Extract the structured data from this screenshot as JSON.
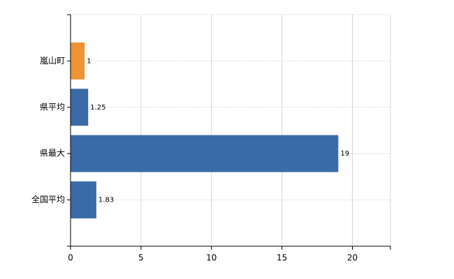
{
  "chart_data": {
    "type": "hbar",
    "categories": [
      "嵐山町",
      "県平均",
      "県最大",
      "全国平均"
    ],
    "values": [
      1,
      1.25,
      19,
      1.83
    ],
    "colors": [
      "#ef9333",
      "#3a6ba7",
      "#3a6ba7",
      "#3a6ba7"
    ],
    "xlim": [
      0,
      22.7
    ],
    "xticks": [
      0,
      5,
      10,
      15,
      20
    ],
    "grid": true
  }
}
